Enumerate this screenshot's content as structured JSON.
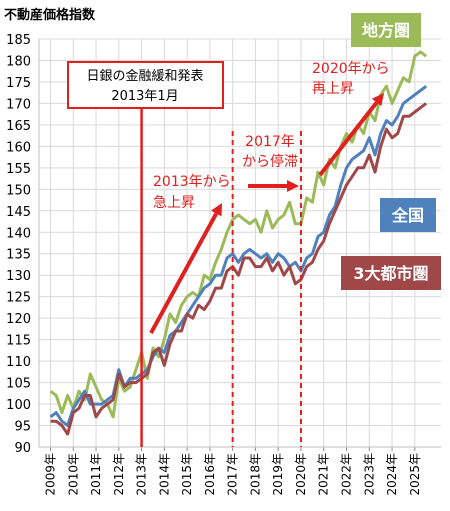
{
  "chart_data": {
    "type": "line",
    "ylabel": "不動産価格指数",
    "ylim": [
      90,
      185
    ],
    "yticks": [
      90,
      95,
      100,
      105,
      110,
      115,
      120,
      125,
      130,
      135,
      140,
      145,
      150,
      155,
      160,
      165,
      170,
      175,
      180,
      185
    ],
    "xlim": [
      2009,
      2025.92
    ],
    "xticks": [
      {
        "x": 2009,
        "label": "2009年"
      },
      {
        "x": 2010,
        "label": "2010年"
      },
      {
        "x": 2011,
        "label": "2011年"
      },
      {
        "x": 2012,
        "label": "2012年"
      },
      {
        "x": 2013,
        "label": "2013年"
      },
      {
        "x": 2014,
        "label": "2014年"
      },
      {
        "x": 2015,
        "label": "2015年"
      },
      {
        "x": 2016,
        "label": "2016年"
      },
      {
        "x": 2017,
        "label": "2017年"
      },
      {
        "x": 2018,
        "label": "2018年"
      },
      {
        "x": 2019,
        "label": "2019年"
      },
      {
        "x": 2020,
        "label": "2020年"
      },
      {
        "x": 2021,
        "label": "2021年"
      },
      {
        "x": 2022,
        "label": "2022年"
      },
      {
        "x": 2023,
        "label": "2023年"
      },
      {
        "x": 2024,
        "label": "2024年"
      },
      {
        "x": 2025,
        "label": "2025年"
      }
    ],
    "grid": true,
    "series": [
      {
        "name": "地方圏",
        "color": "#9BBB59",
        "points": [
          [
            2009.0,
            103
          ],
          [
            2009.25,
            102
          ],
          [
            2009.5,
            98
          ],
          [
            2009.75,
            102
          ],
          [
            2010.0,
            99
          ],
          [
            2010.25,
            103
          ],
          [
            2010.5,
            101
          ],
          [
            2010.75,
            107
          ],
          [
            2011.0,
            104
          ],
          [
            2011.25,
            101
          ],
          [
            2011.5,
            100
          ],
          [
            2011.75,
            97
          ],
          [
            2012.0,
            106
          ],
          [
            2012.25,
            103
          ],
          [
            2012.5,
            104
          ],
          [
            2012.75,
            108
          ],
          [
            2013.0,
            112
          ],
          [
            2013.25,
            106
          ],
          [
            2013.5,
            113
          ],
          [
            2013.75,
            111
          ],
          [
            2014.0,
            115
          ],
          [
            2014.25,
            121
          ],
          [
            2014.5,
            119
          ],
          [
            2014.75,
            123
          ],
          [
            2015.0,
            125
          ],
          [
            2015.25,
            126
          ],
          [
            2015.5,
            125
          ],
          [
            2015.75,
            130
          ],
          [
            2016.0,
            129
          ],
          [
            2016.25,
            133
          ],
          [
            2016.5,
            136
          ],
          [
            2016.75,
            140
          ],
          [
            2017.0,
            143
          ],
          [
            2017.25,
            144
          ],
          [
            2017.5,
            143
          ],
          [
            2017.75,
            142
          ],
          [
            2018.0,
            143
          ],
          [
            2018.25,
            140
          ],
          [
            2018.5,
            145
          ],
          [
            2018.75,
            141
          ],
          [
            2019.0,
            143
          ],
          [
            2019.25,
            144
          ],
          [
            2019.5,
            147
          ],
          [
            2019.75,
            142
          ],
          [
            2020.0,
            142
          ],
          [
            2020.25,
            148
          ],
          [
            2020.5,
            147
          ],
          [
            2020.75,
            154
          ],
          [
            2021.0,
            151
          ],
          [
            2021.25,
            157
          ],
          [
            2021.5,
            155
          ],
          [
            2021.75,
            160
          ],
          [
            2022.0,
            163
          ],
          [
            2022.25,
            161
          ],
          [
            2022.5,
            165
          ],
          [
            2022.75,
            163
          ],
          [
            2023.0,
            168
          ],
          [
            2023.25,
            166
          ],
          [
            2023.5,
            172
          ],
          [
            2023.75,
            174
          ],
          [
            2024.0,
            170
          ],
          [
            2024.25,
            173
          ],
          [
            2024.5,
            176
          ],
          [
            2024.75,
            175
          ],
          [
            2025.0,
            181
          ],
          [
            2025.25,
            182
          ],
          [
            2025.5,
            181
          ]
        ]
      },
      {
        "name": "全国",
        "color": "#4F81BD",
        "points": [
          [
            2009.0,
            97
          ],
          [
            2009.25,
            98
          ],
          [
            2009.5,
            96
          ],
          [
            2009.75,
            95
          ],
          [
            2010.0,
            99
          ],
          [
            2010.25,
            101
          ],
          [
            2010.5,
            103
          ],
          [
            2010.75,
            100
          ],
          [
            2011.0,
            100
          ],
          [
            2011.25,
            100
          ],
          [
            2011.5,
            101
          ],
          [
            2011.75,
            102
          ],
          [
            2012.0,
            108
          ],
          [
            2012.25,
            104
          ],
          [
            2012.5,
            106
          ],
          [
            2012.75,
            106
          ],
          [
            2013.0,
            107
          ],
          [
            2013.25,
            108
          ],
          [
            2013.5,
            111
          ],
          [
            2013.75,
            113
          ],
          [
            2014.0,
            112
          ],
          [
            2014.25,
            116
          ],
          [
            2014.5,
            117
          ],
          [
            2014.75,
            119
          ],
          [
            2015.0,
            121
          ],
          [
            2015.25,
            123
          ],
          [
            2015.5,
            125
          ],
          [
            2015.75,
            127
          ],
          [
            2016.0,
            128
          ],
          [
            2016.25,
            130
          ],
          [
            2016.5,
            130
          ],
          [
            2016.75,
            134
          ],
          [
            2017.0,
            135
          ],
          [
            2017.25,
            133
          ],
          [
            2017.5,
            135
          ],
          [
            2017.75,
            136
          ],
          [
            2018.0,
            135
          ],
          [
            2018.25,
            134
          ],
          [
            2018.5,
            135
          ],
          [
            2018.75,
            133
          ],
          [
            2019.0,
            135
          ],
          [
            2019.25,
            134
          ],
          [
            2019.5,
            132
          ],
          [
            2019.75,
            133
          ],
          [
            2020.0,
            131
          ],
          [
            2020.25,
            134
          ],
          [
            2020.5,
            135
          ],
          [
            2020.75,
            139
          ],
          [
            2021.0,
            140
          ],
          [
            2021.25,
            144
          ],
          [
            2021.5,
            146
          ],
          [
            2021.75,
            151
          ],
          [
            2022.0,
            155
          ],
          [
            2022.25,
            157
          ],
          [
            2022.5,
            158
          ],
          [
            2022.75,
            159
          ],
          [
            2023.0,
            162
          ],
          [
            2023.25,
            158
          ],
          [
            2023.5,
            163
          ],
          [
            2023.75,
            166
          ],
          [
            2024.0,
            165
          ],
          [
            2024.25,
            167
          ],
          [
            2024.5,
            170
          ],
          [
            2024.75,
            171
          ],
          [
            2025.0,
            172
          ],
          [
            2025.25,
            173
          ],
          [
            2025.5,
            174
          ]
        ]
      },
      {
        "name": "3大都市圏",
        "color": "#A0474A",
        "points": [
          [
            2009.0,
            96
          ],
          [
            2009.25,
            96
          ],
          [
            2009.5,
            95
          ],
          [
            2009.75,
            93
          ],
          [
            2010.0,
            98
          ],
          [
            2010.25,
            99
          ],
          [
            2010.5,
            102
          ],
          [
            2010.75,
            102
          ],
          [
            2011.0,
            97
          ],
          [
            2011.25,
            99
          ],
          [
            2011.5,
            100
          ],
          [
            2011.75,
            101
          ],
          [
            2012.0,
            107
          ],
          [
            2012.25,
            104
          ],
          [
            2012.5,
            105
          ],
          [
            2012.75,
            105
          ],
          [
            2013.0,
            106
          ],
          [
            2013.25,
            107
          ],
          [
            2013.5,
            112
          ],
          [
            2013.75,
            113
          ],
          [
            2014.0,
            109
          ],
          [
            2014.25,
            114
          ],
          [
            2014.5,
            117
          ],
          [
            2014.75,
            117
          ],
          [
            2015.0,
            121
          ],
          [
            2015.25,
            120
          ],
          [
            2015.5,
            123
          ],
          [
            2015.75,
            122
          ],
          [
            2016.0,
            124
          ],
          [
            2016.25,
            127
          ],
          [
            2016.5,
            127
          ],
          [
            2016.75,
            131
          ],
          [
            2017.0,
            132
          ],
          [
            2017.25,
            130
          ],
          [
            2017.5,
            134
          ],
          [
            2017.75,
            134
          ],
          [
            2018.0,
            132
          ],
          [
            2018.25,
            132
          ],
          [
            2018.5,
            134
          ],
          [
            2018.75,
            131
          ],
          [
            2019.0,
            133
          ],
          [
            2019.25,
            130
          ],
          [
            2019.5,
            132
          ],
          [
            2019.75,
            128
          ],
          [
            2020.0,
            129
          ],
          [
            2020.25,
            132
          ],
          [
            2020.5,
            133
          ],
          [
            2020.75,
            136
          ],
          [
            2021.0,
            138
          ],
          [
            2021.25,
            142
          ],
          [
            2021.5,
            145
          ],
          [
            2021.75,
            148
          ],
          [
            2022.0,
            151
          ],
          [
            2022.25,
            153
          ],
          [
            2022.5,
            155
          ],
          [
            2022.75,
            155
          ],
          [
            2023.0,
            158
          ],
          [
            2023.25,
            154
          ],
          [
            2023.5,
            160
          ],
          [
            2023.75,
            164
          ],
          [
            2024.0,
            162
          ],
          [
            2024.25,
            163
          ],
          [
            2024.5,
            167
          ],
          [
            2024.75,
            167
          ],
          [
            2025.0,
            168
          ],
          [
            2025.25,
            169
          ],
          [
            2025.5,
            170
          ]
        ]
      }
    ],
    "series_labels": [
      {
        "series": "地方圏",
        "text": "地方圏",
        "bg": "#9BBB59"
      },
      {
        "series": "全国",
        "text": "全国",
        "bg": "#4F81BD"
      },
      {
        "series": "3大都市圏",
        "text": "3大都市圏",
        "bg": "#A0474A"
      }
    ],
    "annotations": {
      "boj_box": {
        "line1": "日銀の金融緩和発表",
        "line2": "2013年1月",
        "x": 2013.0,
        "color": "#E0201E"
      },
      "dashed_lines": [
        2017.0,
        2020.0
      ],
      "text_2013": [
        "2013年から",
        "急上昇"
      ],
      "text_2017": [
        "2017年",
        "から停滞"
      ],
      "text_2020": [
        "2020年から",
        "再上昇"
      ],
      "accent": "#E0201E"
    }
  }
}
